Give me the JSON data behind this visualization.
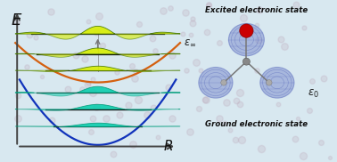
{
  "bg_color": "#d8e8f0",
  "bg_dots_color": "#c0afc0",
  "axis_color": "#444444",
  "excited_label": "Excited electronic state",
  "ground_label": "Ground electronic state",
  "orange_parabola_color": "#d46010",
  "blue_parabola_color": "#1133bb",
  "yellow_fill_color": "#d8ee00",
  "yellow_edge_color": "#447700",
  "teal_fill_color": "#00ccaa",
  "teal_edge_color": "#009977",
  "arrow_color": "#777777",
  "line_color": "#111111",
  "molecule_blob_color": "#7788cc",
  "molecule_blob_alpha": 0.5,
  "red_dot_color": "#cc0000",
  "text_color": "#111111",
  "eps_color": "#222222"
}
